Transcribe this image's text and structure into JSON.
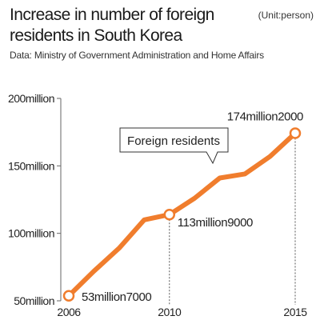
{
  "header": {
    "title": "Increase in number of foreign residents in South Korea",
    "unit": "(Unit:person)",
    "source": "Data: Ministry of Government Administration and Home Affairs"
  },
  "colors": {
    "line": "#f07d2d",
    "axis": "#666666",
    "dash": "#555555"
  },
  "chart_data": {
    "type": "line",
    "title": "Increase in number of foreign residents in South Korea",
    "xlabel": "",
    "ylabel": "",
    "unit": "(Unit:person)",
    "x_ticks": [
      "2006",
      "2010",
      "2015"
    ],
    "y_ticks": [
      "50million",
      "100million",
      "150million",
      "200million"
    ],
    "y_tick_values": [
      50,
      100,
      150,
      200
    ],
    "ylim": [
      50,
      200
    ],
    "xlim": [
      2006,
      2015
    ],
    "grid": false,
    "legend": "callout",
    "series": [
      {
        "name": "Foreign residents",
        "x": [
          2006,
          2007,
          2008,
          2009,
          2010,
          2011,
          2012,
          2013,
          2014,
          2015
        ],
        "values": [
          53.7,
          72,
          89,
          110,
          113.9,
          126,
          141,
          144,
          157,
          174.2
        ]
      }
    ],
    "data_labels": [
      {
        "x": 2006,
        "text": "53million7000"
      },
      {
        "x": 2010,
        "text": "113million9000"
      },
      {
        "x": 2015,
        "text": "174million2000"
      }
    ]
  }
}
